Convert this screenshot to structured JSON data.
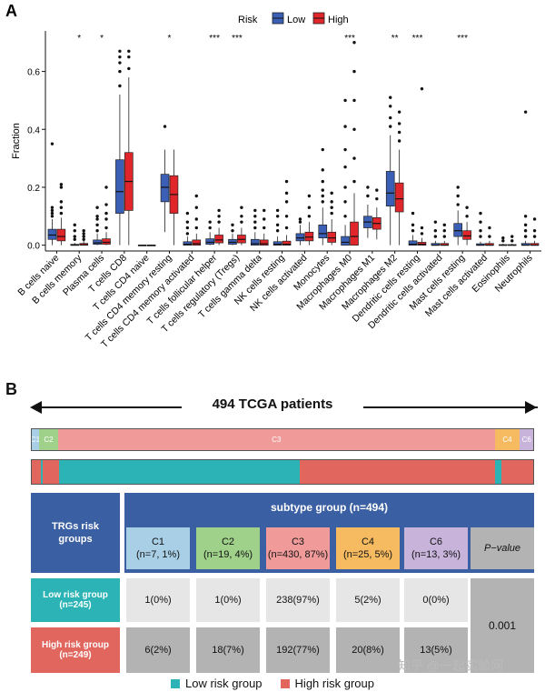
{
  "panelA": {
    "letter": "A",
    "chart_data": {
      "type": "box",
      "ylabel": "Fraction",
      "ylim": [
        -0.02,
        0.74
      ],
      "yticks": [
        0.0,
        0.2,
        0.4,
        0.6
      ],
      "ytick_labels": [
        "0.0",
        "0.2",
        "0.4",
        "0.6"
      ],
      "legend": {
        "title": "Risk",
        "position": "top",
        "entries": [
          "Low",
          "High"
        ]
      },
      "series_colors": {
        "Low": "#3b5fb5",
        "High": "#e0262b"
      },
      "categories": [
        {
          "label": "B cells naive",
          "sig": "",
          "low": {
            "q1": 0.02,
            "med": 0.035,
            "q3": 0.055,
            "wlo": 0.0,
            "whi": 0.09,
            "out": [
              0.1,
              0.11,
              0.12,
              0.13,
              0.35
            ]
          },
          "high": {
            "q1": 0.015,
            "med": 0.03,
            "q3": 0.055,
            "wlo": 0.0,
            "whi": 0.095,
            "out": [
              0.11,
              0.13,
              0.15,
              0.2,
              0.21
            ]
          }
        },
        {
          "label": "B cells memory",
          "sig": "*",
          "low": {
            "q1": 0.0,
            "med": 0.0,
            "q3": 0.003,
            "wlo": 0.0,
            "whi": 0.008,
            "out": [
              0.02,
              0.03,
              0.05,
              0.07
            ]
          },
          "high": {
            "q1": 0.0,
            "med": 0.001,
            "q3": 0.006,
            "wlo": 0.0,
            "whi": 0.015,
            "out": [
              0.02,
              0.03,
              0.04,
              0.05
            ]
          }
        },
        {
          "label": "Plasma cells",
          "sig": "*",
          "low": {
            "q1": 0.003,
            "med": 0.008,
            "q3": 0.018,
            "wlo": 0.0,
            "whi": 0.04,
            "out": [
              0.05,
              0.07,
              0.09,
              0.1,
              0.13
            ]
          },
          "high": {
            "q1": 0.003,
            "med": 0.01,
            "q3": 0.022,
            "wlo": 0.0,
            "whi": 0.045,
            "out": [
              0.06,
              0.09,
              0.11,
              0.14,
              0.2
            ]
          }
        },
        {
          "label": "T cells CD8",
          "sig": "",
          "low": {
            "q1": 0.11,
            "med": 0.185,
            "q3": 0.295,
            "wlo": 0.0,
            "whi": 0.52,
            "out": [
              0.55,
              0.6,
              0.63,
              0.65,
              0.67
            ]
          },
          "high": {
            "q1": 0.12,
            "med": 0.22,
            "q3": 0.32,
            "wlo": 0.0,
            "whi": 0.58,
            "out": [
              0.61,
              0.65,
              0.67
            ]
          }
        },
        {
          "label": "T cells CD4 naive",
          "sig": "",
          "low": {
            "q1": 0.0,
            "med": 0.0,
            "q3": 0.0,
            "wlo": 0.0,
            "whi": 0.0,
            "out": []
          },
          "high": {
            "q1": 0.0,
            "med": 0.0,
            "q3": 0.0,
            "wlo": 0.0,
            "whi": 0.0,
            "out": []
          }
        },
        {
          "label": "T cells CD4 memory resting",
          "sig": "*",
          "low": {
            "q1": 0.15,
            "med": 0.2,
            "q3": 0.245,
            "wlo": 0.045,
            "whi": 0.33,
            "out": [
              0.41
            ]
          },
          "high": {
            "q1": 0.11,
            "med": 0.175,
            "q3": 0.24,
            "wlo": 0.0,
            "whi": 0.33,
            "out": []
          }
        },
        {
          "label": "T cells CD4 memory activated",
          "sig": "",
          "low": {
            "q1": 0.0,
            "med": 0.003,
            "q3": 0.012,
            "wlo": 0.0,
            "whi": 0.03,
            "out": [
              0.04,
              0.06,
              0.08,
              0.11
            ]
          },
          "high": {
            "q1": 0.0,
            "med": 0.005,
            "q3": 0.018,
            "wlo": 0.0,
            "whi": 0.04,
            "out": [
              0.06,
              0.09,
              0.13,
              0.17
            ]
          }
        },
        {
          "label": "T cells follicular helper",
          "sig": "***",
          "low": {
            "q1": 0.003,
            "med": 0.01,
            "q3": 0.022,
            "wlo": 0.0,
            "whi": 0.045,
            "out": [
              0.06,
              0.08
            ]
          },
          "high": {
            "q1": 0.008,
            "med": 0.018,
            "q3": 0.035,
            "wlo": 0.0,
            "whi": 0.06,
            "out": [
              0.08,
              0.1,
              0.12
            ]
          }
        },
        {
          "label": "T cells regulatory (Tregs)",
          "sig": "***",
          "low": {
            "q1": 0.003,
            "med": 0.01,
            "q3": 0.02,
            "wlo": 0.0,
            "whi": 0.04,
            "out": [
              0.05,
              0.07
            ]
          },
          "high": {
            "q1": 0.008,
            "med": 0.02,
            "q3": 0.035,
            "wlo": 0.0,
            "whi": 0.06,
            "out": [
              0.08,
              0.1,
              0.13
            ]
          }
        },
        {
          "label": "T cells gamma delta",
          "sig": "",
          "low": {
            "q1": 0.0,
            "med": 0.005,
            "q3": 0.02,
            "wlo": 0.0,
            "whi": 0.045,
            "out": [
              0.06,
              0.08,
              0.1,
              0.12
            ]
          },
          "high": {
            "q1": 0.0,
            "med": 0.005,
            "q3": 0.018,
            "wlo": 0.0,
            "whi": 0.04,
            "out": [
              0.06,
              0.09,
              0.12
            ]
          }
        },
        {
          "label": "NK cells resting",
          "sig": "",
          "low": {
            "q1": 0.0,
            "med": 0.003,
            "q3": 0.012,
            "wlo": 0.0,
            "whi": 0.03,
            "out": [
              0.05,
              0.07,
              0.1,
              0.12
            ]
          },
          "high": {
            "q1": 0.0,
            "med": 0.003,
            "q3": 0.014,
            "wlo": 0.0,
            "whi": 0.035,
            "out": [
              0.06,
              0.1,
              0.15,
              0.18,
              0.22
            ]
          }
        },
        {
          "label": "NK cells activated",
          "sig": "",
          "low": {
            "q1": 0.015,
            "med": 0.025,
            "q3": 0.04,
            "wlo": 0.0,
            "whi": 0.07,
            "out": [
              0.08,
              0.09
            ]
          },
          "high": {
            "q1": 0.015,
            "med": 0.028,
            "q3": 0.045,
            "wlo": 0.0,
            "whi": 0.08,
            "out": [
              0.1,
              0.13,
              0.17
            ]
          }
        },
        {
          "label": "Monocytes",
          "sig": "",
          "low": {
            "q1": 0.025,
            "med": 0.04,
            "q3": 0.07,
            "wlo": 0.0,
            "whi": 0.13,
            "out": [
              0.15,
              0.17,
              0.19,
              0.22,
              0.26,
              0.33
            ]
          },
          "high": {
            "q1": 0.01,
            "med": 0.025,
            "q3": 0.045,
            "wlo": 0.0,
            "whi": 0.09,
            "out": [
              0.11,
              0.13,
              0.15,
              0.18
            ]
          }
        },
        {
          "label": "Macrophages M0",
          "sig": "***",
          "low": {
            "q1": 0.0,
            "med": 0.01,
            "q3": 0.03,
            "wlo": 0.0,
            "whi": 0.07,
            "out": [
              0.1,
              0.15,
              0.2,
              0.27,
              0.33,
              0.41,
              0.5
            ]
          },
          "high": {
            "q1": 0.0,
            "med": 0.03,
            "q3": 0.08,
            "wlo": 0.0,
            "whi": 0.18,
            "out": [
              0.22,
              0.3,
              0.4,
              0.5,
              0.6,
              0.7
            ]
          }
        },
        {
          "label": "Macrophages M1",
          "sig": "",
          "low": {
            "q1": 0.06,
            "med": 0.08,
            "q3": 0.1,
            "wlo": 0.025,
            "whi": 0.14,
            "out": [
              0.17,
              0.2
            ]
          },
          "high": {
            "q1": 0.055,
            "med": 0.075,
            "q3": 0.095,
            "wlo": 0.02,
            "whi": 0.13,
            "out": [
              0.16,
              0.19
            ]
          }
        },
        {
          "label": "Macrophages M2",
          "sig": "**",
          "low": {
            "q1": 0.135,
            "med": 0.18,
            "q3": 0.255,
            "wlo": 0.0,
            "whi": 0.38,
            "out": [
              0.41,
              0.44,
              0.48,
              0.51
            ]
          },
          "high": {
            "q1": 0.115,
            "med": 0.16,
            "q3": 0.215,
            "wlo": 0.0,
            "whi": 0.33,
            "out": [
              0.36,
              0.39,
              0.42,
              0.46
            ]
          }
        },
        {
          "label": "Dendritic cells resting",
          "sig": "***",
          "low": {
            "q1": 0.0,
            "med": 0.003,
            "q3": 0.015,
            "wlo": 0.0,
            "whi": 0.035,
            "out": [
              0.05,
              0.07,
              0.11
            ]
          },
          "high": {
            "q1": 0.0,
            "med": 0.003,
            "q3": 0.01,
            "wlo": 0.0,
            "whi": 0.025,
            "out": [
              0.04,
              0.06,
              0.54
            ]
          }
        },
        {
          "label": "Dendritic cells activated",
          "sig": "",
          "low": {
            "q1": 0.0,
            "med": 0.0,
            "q3": 0.006,
            "wlo": 0.0,
            "whi": 0.015,
            "out": [
              0.03,
              0.05,
              0.08
            ]
          },
          "high": {
            "q1": 0.0,
            "med": 0.0,
            "q3": 0.006,
            "wlo": 0.0,
            "whi": 0.015,
            "out": [
              0.03,
              0.05,
              0.07
            ]
          }
        },
        {
          "label": "Mast cells resting",
          "sig": "***",
          "low": {
            "q1": 0.03,
            "med": 0.05,
            "q3": 0.075,
            "wlo": 0.0,
            "whi": 0.12,
            "out": [
              0.14,
              0.17,
              0.2
            ]
          },
          "high": {
            "q1": 0.02,
            "med": 0.032,
            "q3": 0.05,
            "wlo": 0.0,
            "whi": 0.08,
            "out": [
              0.1,
              0.13
            ]
          }
        },
        {
          "label": "Mast cells activated",
          "sig": "",
          "low": {
            "q1": 0.0,
            "med": 0.0,
            "q3": 0.005,
            "wlo": 0.0,
            "whi": 0.012,
            "out": [
              0.03,
              0.05,
              0.08,
              0.11
            ]
          },
          "high": {
            "q1": 0.0,
            "med": 0.0,
            "q3": 0.006,
            "wlo": 0.0,
            "whi": 0.015,
            "out": [
              0.03,
              0.06
            ]
          }
        },
        {
          "label": "Eosinophils",
          "sig": "",
          "low": {
            "q1": 0.0,
            "med": 0.0,
            "q3": 0.002,
            "wlo": 0.0,
            "whi": 0.005,
            "out": [
              0.015,
              0.025
            ]
          },
          "high": {
            "q1": 0.0,
            "med": 0.0,
            "q3": 0.002,
            "wlo": 0.0,
            "whi": 0.005,
            "out": [
              0.015,
              0.03
            ]
          }
        },
        {
          "label": "Neutrophils",
          "sig": "",
          "low": {
            "q1": 0.0,
            "med": 0.0,
            "q3": 0.006,
            "wlo": 0.0,
            "whi": 0.015,
            "out": [
              0.03,
              0.05,
              0.07,
              0.1,
              0.46
            ]
          },
          "high": {
            "q1": 0.0,
            "med": 0.0,
            "q3": 0.006,
            "wlo": 0.0,
            "whi": 0.015,
            "out": [
              0.03,
              0.05,
              0.09
            ]
          }
        }
      ]
    }
  },
  "panelB": {
    "letter": "B",
    "cohort_title": "494 TCGA patients",
    "subtype_bar": [
      {
        "label": "C1",
        "fraction": 0.0142,
        "color": "#a9cfe6"
      },
      {
        "label": "C2",
        "fraction": 0.0385,
        "color": "#9fd18b"
      },
      {
        "label": "C3",
        "fraction": 0.8704,
        "color": "#f09a9a"
      },
      {
        "label": "C4",
        "fraction": 0.0506,
        "color": "#f6bb61"
      },
      {
        "label": "C6",
        "fraction": 0.0263,
        "color": "#c8b3db"
      }
    ],
    "risk_bar": [
      {
        "group": "high",
        "fraction": 0.018
      },
      {
        "group": "low",
        "fraction": 0.004
      },
      {
        "group": "high",
        "fraction": 0.032
      },
      {
        "group": "low",
        "fraction": 0.48
      },
      {
        "group": "high",
        "fraction": 0.39
      },
      {
        "group": "low",
        "fraction": 0.012
      },
      {
        "group": "high",
        "fraction": 0.064
      }
    ],
    "colors": {
      "low": "#2bb3b5",
      "high": "#e0665e"
    },
    "table": {
      "corner": [
        "TRGs risk",
        "groups"
      ],
      "header": "subtype group (n=494)",
      "subtypes": [
        {
          "name": "C1",
          "n": "(n=7, 1%)",
          "color": "#a9cfe6"
        },
        {
          "name": "C2",
          "n": "(n=19, 4%)",
          "color": "#9fd18b"
        },
        {
          "name": "C3",
          "n": "(n=430, 87%)",
          "color": "#f09a9a"
        },
        {
          "name": "C4",
          "n": "(n=25, 5%)",
          "color": "#f6bb61"
        },
        {
          "name": "C6",
          "n": "(n=13, 3%)",
          "color": "#c8b3db"
        }
      ],
      "pvalue_label": "P−value",
      "low_label": [
        "Low risk group",
        "(n=245)"
      ],
      "high_label": [
        "High risk group",
        "(n=249)"
      ],
      "low_values": [
        "1(0%)",
        "1(0%)",
        "238(97%)",
        "5(2%)",
        "0(0%)"
      ],
      "high_values": [
        "6(2%)",
        "18(7%)",
        "192(77%)",
        "20(8%)",
        "13(5%)"
      ],
      "pvalue": "0.001"
    },
    "legend": [
      "Low risk group",
      "High risk group"
    ],
    "watermark": "知乎 @一起实验网"
  }
}
